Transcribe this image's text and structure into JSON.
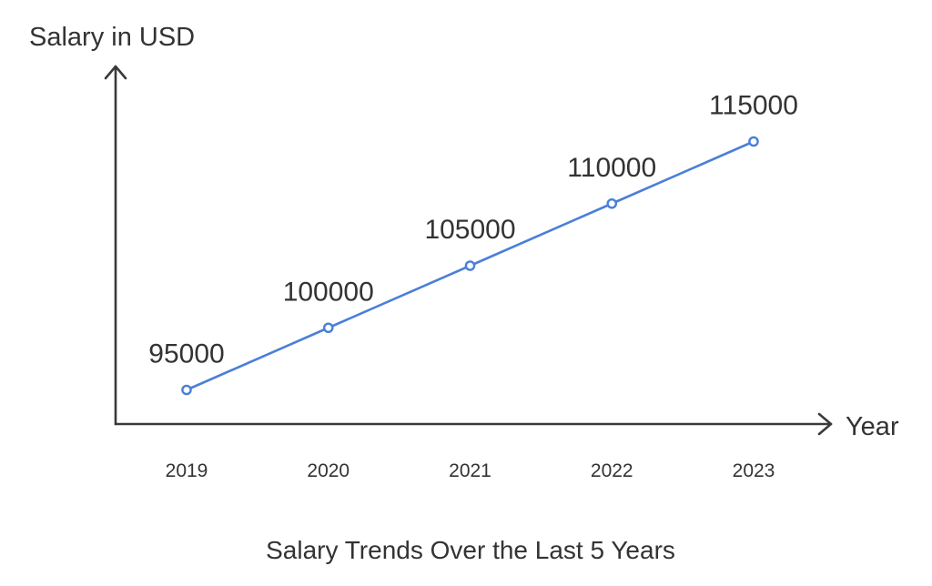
{
  "chart_data": {
    "type": "line",
    "title": "Salary Trends Over the Last 5 Years",
    "xlabel": "Year",
    "ylabel": "Salary in USD",
    "categories": [
      "2019",
      "2020",
      "2021",
      "2022",
      "2023"
    ],
    "series": [
      {
        "values": [
          95000,
          100000,
          105000,
          110000,
          115000
        ]
      }
    ],
    "data_labels": [
      "95000",
      "100000",
      "105000",
      "110000",
      "115000"
    ],
    "grid": false,
    "legend": "none",
    "line_color": "#4a7fd9",
    "axis_color": "#3a3a3a",
    "text_color": "#333333"
  }
}
